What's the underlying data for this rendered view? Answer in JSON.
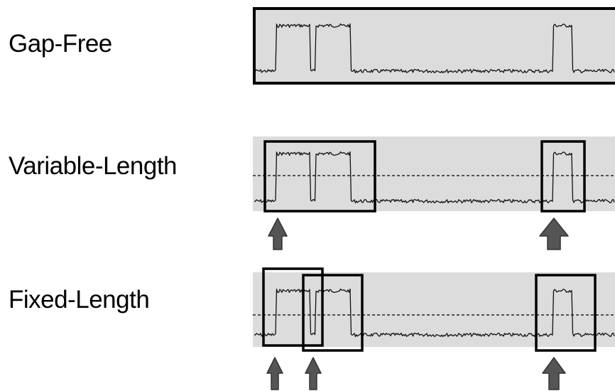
{
  "rows": [
    {
      "label": "Gap-Free",
      "mode": "gap-free"
    },
    {
      "label": "Variable-Length",
      "mode": "variable-length"
    },
    {
      "label": "Fixed-Length",
      "mode": "fixed-length"
    }
  ],
  "colors": {
    "trace_area": "#dcdcdc",
    "trace": "#111111",
    "frame": "#000000",
    "arrow_fill": "#555555",
    "arrow_stroke": "#333333",
    "threshold": "#000000"
  }
}
